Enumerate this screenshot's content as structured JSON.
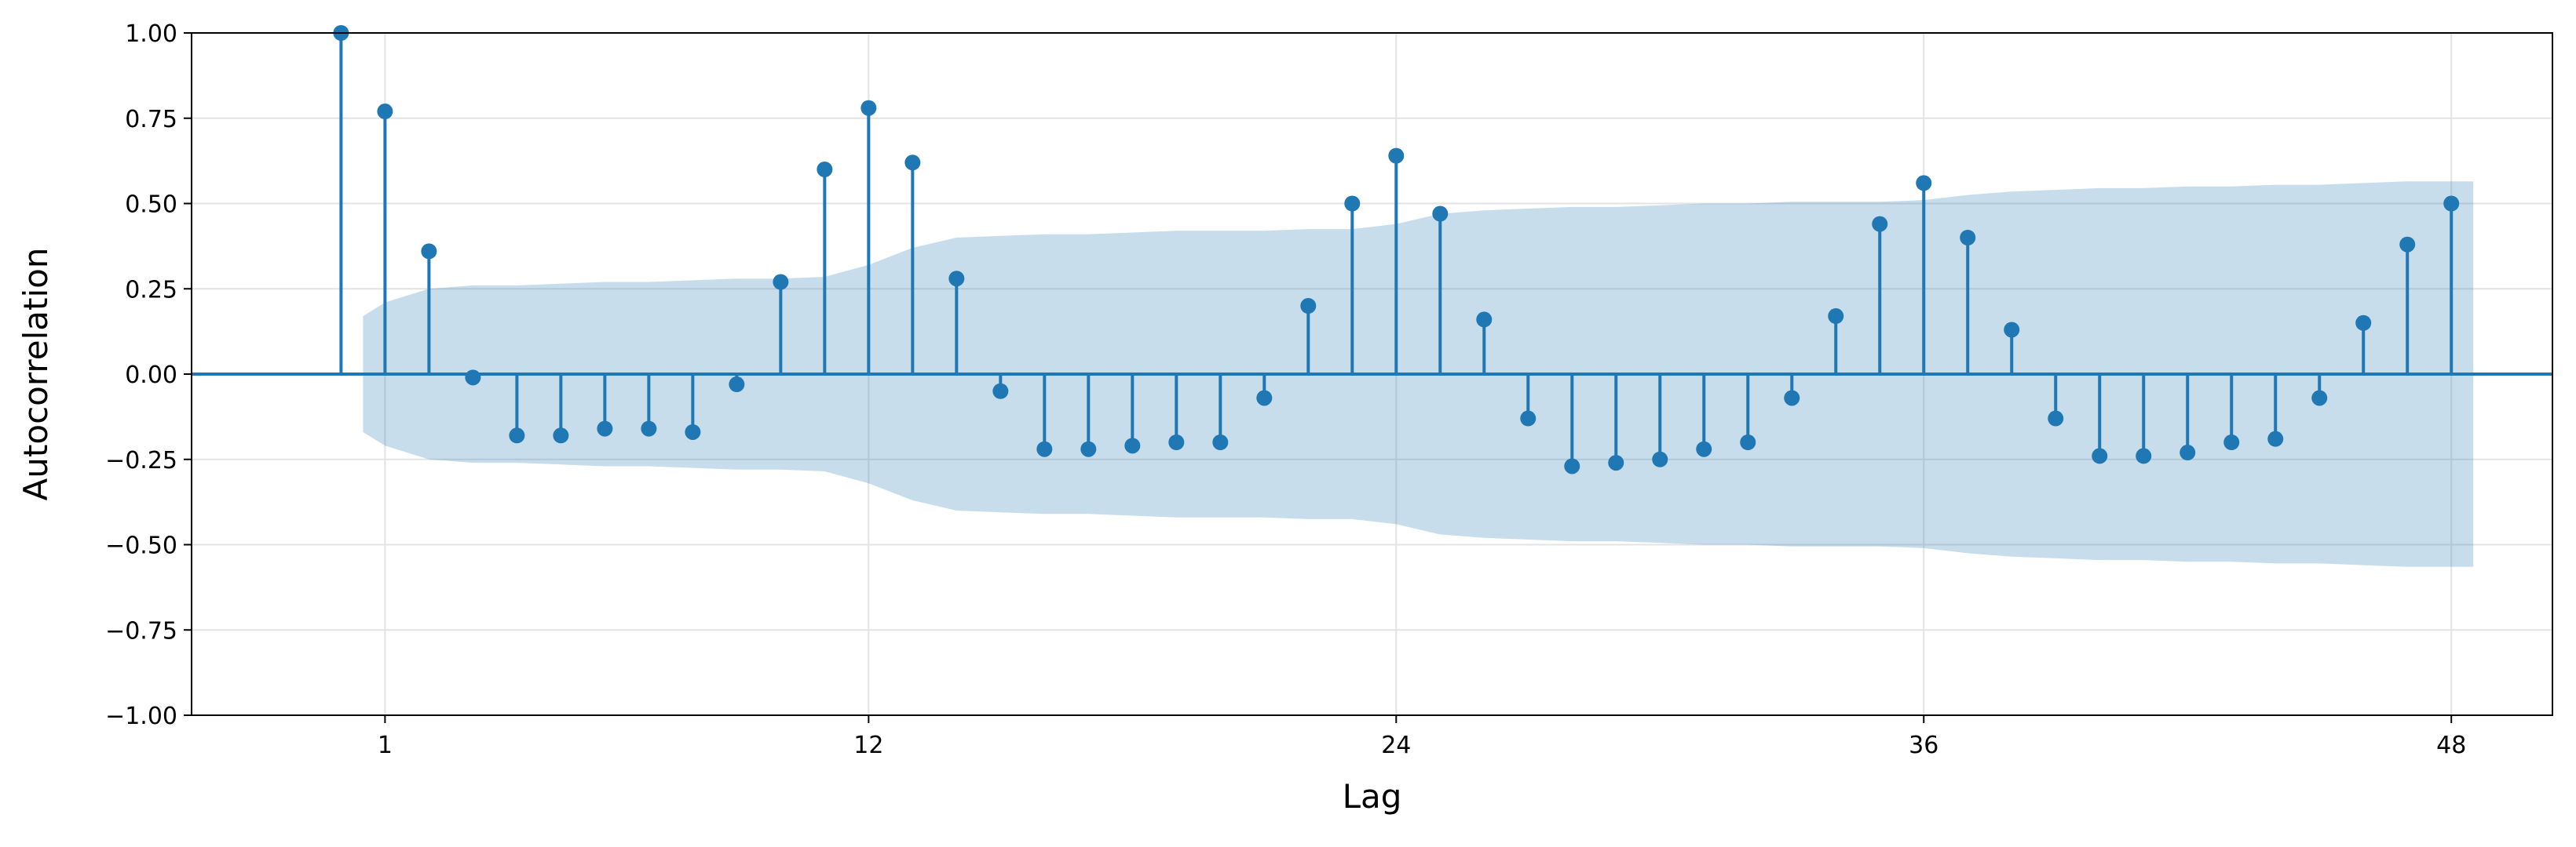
{
  "chart_data": {
    "type": "stem",
    "xlabel": "Lag",
    "ylabel": "Autocorrelation",
    "xlim": [
      -3.4,
      50.3
    ],
    "ylim": [
      -1.0,
      1.0
    ],
    "xticks": [
      1,
      12,
      24,
      36,
      48
    ],
    "yticks": [
      1.0,
      0.75,
      0.5,
      0.25,
      0.0,
      -0.25,
      -0.5,
      -0.75,
      -1.0
    ],
    "ytick_labels": [
      "1.00",
      "0.75",
      "0.50",
      "0.25",
      "0.00",
      "−0.25",
      "−0.50",
      "−0.75",
      "−1.00"
    ],
    "grid": true,
    "lags": [
      0,
      1,
      2,
      3,
      4,
      5,
      6,
      7,
      8,
      9,
      10,
      11,
      12,
      13,
      14,
      15,
      16,
      17,
      18,
      19,
      20,
      21,
      22,
      23,
      24,
      25,
      26,
      27,
      28,
      29,
      30,
      31,
      32,
      33,
      34,
      35,
      36,
      37,
      38,
      39,
      40,
      41,
      42,
      43,
      44,
      45,
      46,
      47,
      48
    ],
    "values": [
      1.0,
      0.77,
      0.36,
      -0.01,
      -0.18,
      -0.18,
      -0.16,
      -0.16,
      -0.17,
      -0.03,
      0.27,
      0.6,
      0.78,
      0.62,
      0.28,
      -0.05,
      -0.22,
      -0.22,
      -0.21,
      -0.2,
      -0.2,
      -0.07,
      0.2,
      0.5,
      0.64,
      0.47,
      0.16,
      -0.13,
      -0.27,
      -0.26,
      -0.25,
      -0.22,
      -0.2,
      -0.07,
      0.17,
      0.44,
      0.56,
      0.4,
      0.13,
      -0.13,
      -0.24,
      -0.24,
      -0.23,
      -0.2,
      -0.19,
      -0.07,
      0.15,
      0.38,
      0.5
    ],
    "confidence_band": {
      "x": [
        0.5,
        1,
        2,
        3,
        4,
        5,
        6,
        7,
        8,
        9,
        10,
        11,
        12,
        13,
        14,
        15,
        16,
        17,
        18,
        19,
        20,
        21,
        22,
        23,
        24,
        25,
        26,
        27,
        28,
        29,
        30,
        31,
        32,
        33,
        34,
        35,
        36,
        37,
        38,
        39,
        40,
        41,
        42,
        43,
        44,
        45,
        46,
        47,
        48.5
      ],
      "upper": [
        0.17,
        0.21,
        0.25,
        0.26,
        0.26,
        0.265,
        0.27,
        0.27,
        0.275,
        0.28,
        0.28,
        0.285,
        0.32,
        0.37,
        0.4,
        0.405,
        0.41,
        0.41,
        0.415,
        0.42,
        0.42,
        0.42,
        0.425,
        0.425,
        0.44,
        0.47,
        0.48,
        0.485,
        0.49,
        0.49,
        0.495,
        0.5,
        0.5,
        0.505,
        0.505,
        0.505,
        0.51,
        0.525,
        0.535,
        0.54,
        0.545,
        0.545,
        0.55,
        0.55,
        0.555,
        0.555,
        0.56,
        0.565,
        0.565
      ]
    },
    "colors": {
      "stem": "#1f77b4",
      "band": "#1f77b4",
      "band_opacity": 0.25,
      "grid": "#e3e3e3",
      "zero_line": "#1f77b4"
    }
  }
}
